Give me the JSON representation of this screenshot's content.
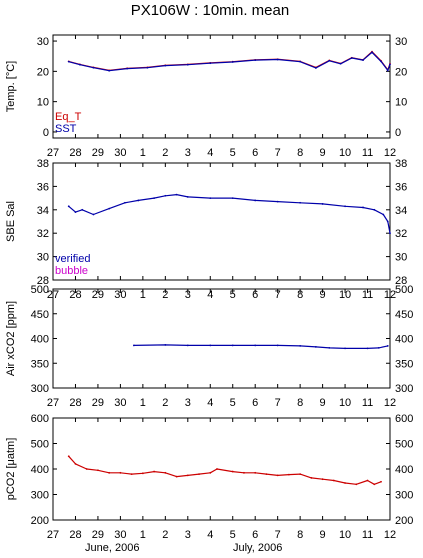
{
  "title": "PX106W : 10min. mean",
  "x_ticks": [
    "27",
    "28",
    "29",
    "30",
    "1",
    "2",
    "3",
    "4",
    "5",
    "6",
    "7",
    "8",
    "9",
    "10",
    "11",
    "12"
  ],
  "month_labels": [
    "June, 2006",
    "July, 2006"
  ],
  "colors": {
    "red": "#cc0000",
    "blue": "#0000aa",
    "magenta": "#cc00cc",
    "axis": "#000000"
  },
  "chart_data": [
    {
      "type": "line",
      "ylabel": "Temp. [°C]",
      "ylim": [
        -2,
        32
      ],
      "yticks": [
        0,
        10,
        20,
        30
      ],
      "legend": [
        "Eq_T",
        "SST"
      ],
      "series": [
        {
          "name": "Eq_T",
          "color": "#cc0000",
          "x": [
            27.7,
            28.2,
            28.8,
            29.5,
            30.3,
            31.2,
            32.0,
            33.0,
            34.0,
            35.0,
            36.0,
            37.0,
            38.0,
            38.7,
            39.3,
            39.8,
            40.3,
            40.8,
            41.2,
            41.6,
            41.9,
            42.0
          ],
          "y": [
            23.3,
            22.3,
            21.3,
            20.3,
            21.0,
            21.3,
            22.0,
            22.3,
            22.8,
            23.2,
            23.8,
            24.0,
            23.3,
            21.3,
            23.6,
            22.6,
            24.5,
            23.8,
            26.5,
            23.5,
            20.5,
            22.5
          ]
        },
        {
          "name": "SST",
          "color": "#0000aa",
          "x": [
            27.7,
            28.2,
            28.8,
            29.5,
            30.3,
            31.2,
            32.0,
            33.0,
            34.0,
            35.0,
            36.0,
            37.0,
            38.0,
            38.7,
            39.3,
            39.8,
            40.3,
            40.8,
            41.2,
            41.6,
            41.9,
            42.0
          ],
          "y": [
            23.2,
            22.2,
            21.2,
            20.2,
            20.9,
            21.2,
            21.9,
            22.2,
            22.7,
            23.1,
            23.7,
            23.9,
            23.2,
            21.1,
            23.5,
            22.5,
            24.4,
            23.7,
            26.3,
            23.3,
            20.3,
            22.3
          ]
        }
      ]
    },
    {
      "type": "line",
      "ylabel": "SBE Sal",
      "ylim": [
        28,
        38
      ],
      "yticks": [
        28,
        30,
        32,
        34,
        36,
        38
      ],
      "legend": [
        "verified",
        "bubble"
      ],
      "series": [
        {
          "name": "verified",
          "color": "#0000aa",
          "x": [
            27.7,
            28.0,
            28.3,
            28.8,
            29.5,
            30.2,
            30.8,
            31.5,
            32.0,
            32.5,
            33.0,
            34.0,
            35.0,
            36.0,
            37.0,
            38.0,
            39.0,
            40.0,
            40.8,
            41.3,
            41.7,
            41.9,
            42.0
          ],
          "y": [
            34.3,
            33.8,
            34.0,
            33.6,
            34.1,
            34.6,
            34.8,
            35.0,
            35.2,
            35.3,
            35.1,
            35.0,
            35.0,
            34.8,
            34.7,
            34.6,
            34.5,
            34.3,
            34.2,
            34.0,
            33.6,
            33.0,
            32.0
          ]
        }
      ]
    },
    {
      "type": "line",
      "ylabel": "Air xCO2 [ppm]",
      "ylim": [
        300,
        500
      ],
      "yticks": [
        300,
        350,
        400,
        450,
        500
      ],
      "series": [
        {
          "name": "",
          "color": "#0000aa",
          "x": [
            30.6,
            32.0,
            33.0,
            34.0,
            35.0,
            36.0,
            37.0,
            38.0,
            38.7,
            39.3,
            40.0,
            41.0,
            41.5,
            41.9
          ],
          "y": [
            386,
            387,
            386,
            386,
            386,
            386,
            386,
            385,
            383,
            381,
            380,
            380,
            381,
            385
          ]
        }
      ]
    },
    {
      "type": "line",
      "ylabel": "pCO2 [μatm]",
      "ylim": [
        200,
        600
      ],
      "yticks": [
        200,
        300,
        400,
        500,
        600
      ],
      "series": [
        {
          "name": "",
          "color": "#cc0000",
          "x": [
            27.7,
            28.0,
            28.5,
            29.0,
            29.5,
            30.0,
            30.5,
            31.0,
            31.5,
            32.0,
            32.5,
            33.0,
            33.5,
            34.0,
            34.3,
            35.0,
            35.5,
            36.0,
            36.5,
            37.0,
            37.5,
            38.0,
            38.5,
            39.0,
            39.5,
            40.0,
            40.5,
            41.0,
            41.3,
            41.6
          ],
          "y": [
            450,
            420,
            400,
            395,
            385,
            385,
            380,
            383,
            390,
            385,
            370,
            375,
            380,
            385,
            400,
            390,
            385,
            385,
            380,
            375,
            378,
            380,
            365,
            360,
            355,
            345,
            340,
            355,
            340,
            350
          ]
        }
      ]
    }
  ]
}
